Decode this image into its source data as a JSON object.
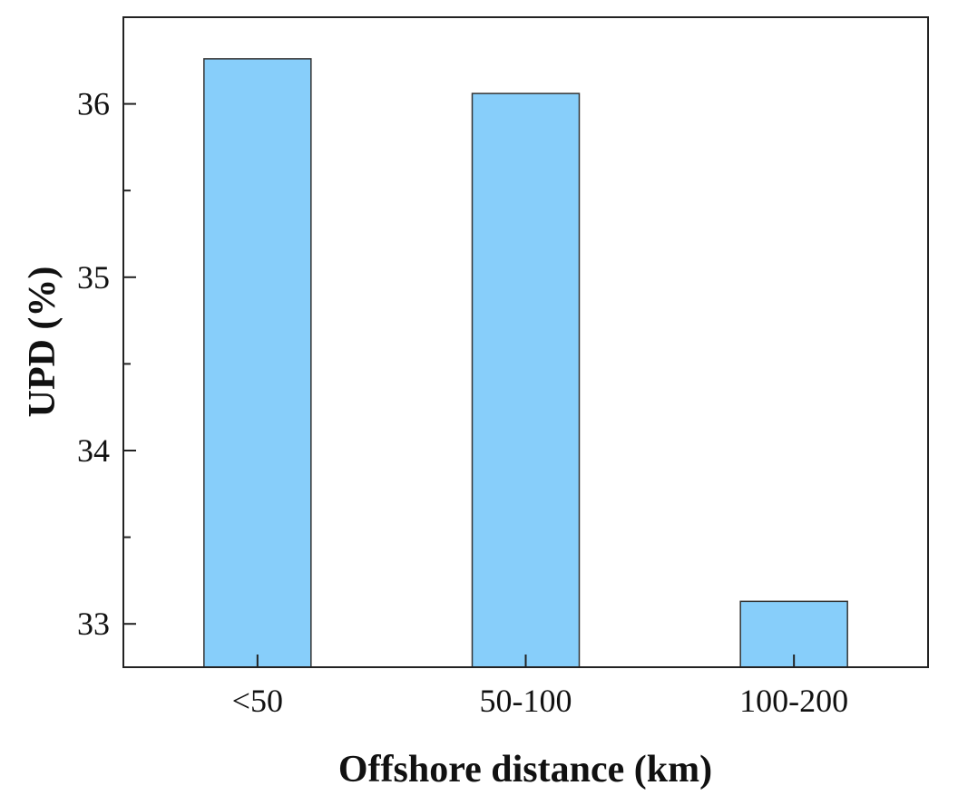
{
  "chart_data": {
    "type": "bar",
    "title": "",
    "xlabel": "Offshore distance (km)",
    "ylabel": "UPD (%)",
    "categories": [
      "<50",
      "50-100",
      "100-200"
    ],
    "values": [
      36.26,
      36.06,
      33.13
    ],
    "ylim": [
      32.75,
      36.5
    ],
    "yticks": [
      33,
      34,
      35,
      36
    ],
    "ytick_labels": [
      "33",
      "34",
      "35",
      "36"
    ],
    "y_minor_ticks": [
      33.5,
      34.5,
      35.5
    ],
    "grid": false,
    "legend": "none",
    "bar_color": "#87cefa",
    "bar_edge_color": "#333333"
  }
}
